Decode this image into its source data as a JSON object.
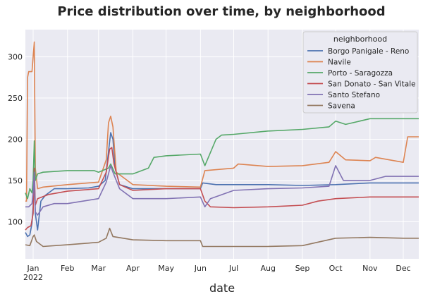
{
  "chart_data": {
    "type": "line",
    "title": "Price distribution over time, by neighborhood",
    "xlabel": "date",
    "ylabel": "",
    "x_range": [
      "2021-12-25",
      "2022-12-15"
    ],
    "ylim": [
      55,
      333
    ],
    "y_ticks": [
      100,
      150,
      200,
      250,
      300
    ],
    "x_ticks": [
      {
        "date": "2022-01-01",
        "label": "Jan",
        "sublabel": "2022"
      },
      {
        "date": "2022-02-01",
        "label": "Feb"
      },
      {
        "date": "2022-03-01",
        "label": "Mar"
      },
      {
        "date": "2022-04-01",
        "label": "Apr"
      },
      {
        "date": "2022-05-01",
        "label": "May"
      },
      {
        "date": "2022-06-01",
        "label": "Jun"
      },
      {
        "date": "2022-07-01",
        "label": "Jul"
      },
      {
        "date": "2022-08-01",
        "label": "Aug"
      },
      {
        "date": "2022-09-01",
        "label": "Sep"
      },
      {
        "date": "2022-10-01",
        "label": "Oct"
      },
      {
        "date": "2022-11-01",
        "label": "Nov"
      },
      {
        "date": "2022-12-01",
        "label": "Dec"
      }
    ],
    "grid": true,
    "legend": {
      "title": "neighborhood",
      "placement": "top-right"
    },
    "series": [
      {
        "name": "Borgo Panigale - Reno",
        "color": "#4c72b0",
        "points": [
          [
            "2021-12-25",
            87
          ],
          [
            "2021-12-27",
            82
          ],
          [
            "2021-12-29",
            84
          ],
          [
            "2021-12-31",
            98
          ],
          [
            "2022-01-01",
            118
          ],
          [
            "2022-01-02",
            152
          ],
          [
            "2022-01-03",
            110
          ],
          [
            "2022-01-05",
            90
          ],
          [
            "2022-01-08",
            125
          ],
          [
            "2022-01-12",
            132
          ],
          [
            "2022-01-20",
            140
          ],
          [
            "2022-02-01",
            140
          ],
          [
            "2022-02-20",
            141
          ],
          [
            "2022-03-01",
            143
          ],
          [
            "2022-03-07",
            150
          ],
          [
            "2022-03-10",
            185
          ],
          [
            "2022-03-12",
            208
          ],
          [
            "2022-03-14",
            200
          ],
          [
            "2022-03-16",
            165
          ],
          [
            "2022-03-20",
            145
          ],
          [
            "2022-04-01",
            140
          ],
          [
            "2022-05-01",
            140
          ],
          [
            "2022-06-01",
            140
          ],
          [
            "2022-06-03",
            147
          ],
          [
            "2022-06-15",
            145
          ],
          [
            "2022-07-01",
            145
          ],
          [
            "2022-08-01",
            145
          ],
          [
            "2022-09-01",
            144
          ],
          [
            "2022-10-01",
            145
          ],
          [
            "2022-11-01",
            147
          ],
          [
            "2022-12-01",
            147
          ],
          [
            "2022-12-15",
            147
          ]
        ]
      },
      {
        "name": "Navile",
        "color": "#dd8452",
        "points": [
          [
            "2021-12-25",
            125
          ],
          [
            "2021-12-26",
            125
          ],
          [
            "2021-12-27",
            275
          ],
          [
            "2021-12-28",
            282
          ],
          [
            "2021-12-31",
            282
          ],
          [
            "2022-01-01",
            300
          ],
          [
            "2022-01-02",
            318
          ],
          [
            "2022-01-03",
            165
          ],
          [
            "2022-01-05",
            140
          ],
          [
            "2022-01-10",
            142
          ],
          [
            "2022-02-01",
            145
          ],
          [
            "2022-03-01",
            148
          ],
          [
            "2022-03-08",
            175
          ],
          [
            "2022-03-10",
            220
          ],
          [
            "2022-03-12",
            228
          ],
          [
            "2022-03-14",
            215
          ],
          [
            "2022-03-17",
            160
          ],
          [
            "2022-04-01",
            145
          ],
          [
            "2022-05-01",
            143
          ],
          [
            "2022-06-01",
            142
          ],
          [
            "2022-06-05",
            162
          ],
          [
            "2022-07-01",
            165
          ],
          [
            "2022-07-05",
            170
          ],
          [
            "2022-08-01",
            167
          ],
          [
            "2022-09-01",
            168
          ],
          [
            "2022-09-25",
            172
          ],
          [
            "2022-10-01",
            185
          ],
          [
            "2022-10-10",
            175
          ],
          [
            "2022-11-01",
            174
          ],
          [
            "2022-11-06",
            178
          ],
          [
            "2022-12-01",
            172
          ],
          [
            "2022-12-05",
            203
          ],
          [
            "2022-12-15",
            203
          ]
        ]
      },
      {
        "name": "Porto - Saragozza",
        "color": "#55a868",
        "points": [
          [
            "2021-12-25",
            135
          ],
          [
            "2021-12-27",
            128
          ],
          [
            "2021-12-29",
            140
          ],
          [
            "2021-12-31",
            135
          ],
          [
            "2022-01-01",
            150
          ],
          [
            "2022-01-02",
            198
          ],
          [
            "2022-01-03",
            150
          ],
          [
            "2022-01-05",
            158
          ],
          [
            "2022-01-10",
            160
          ],
          [
            "2022-02-01",
            162
          ],
          [
            "2022-02-25",
            162
          ],
          [
            "2022-03-01",
            160
          ],
          [
            "2022-03-10",
            165
          ],
          [
            "2022-03-12",
            170
          ],
          [
            "2022-03-16",
            158
          ],
          [
            "2022-04-01",
            158
          ],
          [
            "2022-04-15",
            165
          ],
          [
            "2022-04-20",
            178
          ],
          [
            "2022-05-01",
            180
          ],
          [
            "2022-06-01",
            182
          ],
          [
            "2022-06-05",
            168
          ],
          [
            "2022-06-15",
            200
          ],
          [
            "2022-06-20",
            205
          ],
          [
            "2022-07-01",
            206
          ],
          [
            "2022-08-01",
            210
          ],
          [
            "2022-09-01",
            212
          ],
          [
            "2022-09-25",
            215
          ],
          [
            "2022-10-01",
            222
          ],
          [
            "2022-10-10",
            218
          ],
          [
            "2022-11-01",
            225
          ],
          [
            "2022-12-01",
            225
          ],
          [
            "2022-12-15",
            225
          ]
        ]
      },
      {
        "name": "San Donato - San Vitale",
        "color": "#c44e52",
        "points": [
          [
            "2021-12-25",
            90
          ],
          [
            "2021-12-27",
            93
          ],
          [
            "2021-12-30",
            95
          ],
          [
            "2022-01-01",
            110
          ],
          [
            "2022-01-02",
            165
          ],
          [
            "2022-01-03",
            120
          ],
          [
            "2022-01-05",
            128
          ],
          [
            "2022-01-15",
            133
          ],
          [
            "2022-02-01",
            137
          ],
          [
            "2022-03-01",
            140
          ],
          [
            "2022-03-08",
            160
          ],
          [
            "2022-03-11",
            188
          ],
          [
            "2022-03-13",
            190
          ],
          [
            "2022-03-15",
            170
          ],
          [
            "2022-03-20",
            145
          ],
          [
            "2022-04-01",
            138
          ],
          [
            "2022-05-01",
            140
          ],
          [
            "2022-06-01",
            140
          ],
          [
            "2022-06-05",
            125
          ],
          [
            "2022-06-10",
            118
          ],
          [
            "2022-07-01",
            117
          ],
          [
            "2022-08-01",
            118
          ],
          [
            "2022-09-01",
            120
          ],
          [
            "2022-09-15",
            125
          ],
          [
            "2022-10-01",
            128
          ],
          [
            "2022-11-01",
            130
          ],
          [
            "2022-12-01",
            130
          ],
          [
            "2022-12-15",
            130
          ]
        ]
      },
      {
        "name": "Santo Stefano",
        "color": "#8172b3",
        "points": [
          [
            "2021-12-25",
            118
          ],
          [
            "2021-12-28",
            118
          ],
          [
            "2021-12-31",
            122
          ],
          [
            "2022-01-01",
            135
          ],
          [
            "2022-01-02",
            160
          ],
          [
            "2022-01-03",
            112
          ],
          [
            "2022-01-05",
            108
          ],
          [
            "2022-01-10",
            118
          ],
          [
            "2022-01-20",
            122
          ],
          [
            "2022-02-01",
            122
          ],
          [
            "2022-03-01",
            128
          ],
          [
            "2022-03-08",
            148
          ],
          [
            "2022-03-12",
            168
          ],
          [
            "2022-03-14",
            160
          ],
          [
            "2022-03-20",
            140
          ],
          [
            "2022-04-01",
            128
          ],
          [
            "2022-05-01",
            128
          ],
          [
            "2022-06-01",
            130
          ],
          [
            "2022-06-05",
            118
          ],
          [
            "2022-06-10",
            128
          ],
          [
            "2022-07-01",
            138
          ],
          [
            "2022-08-01",
            140
          ],
          [
            "2022-09-01",
            141
          ],
          [
            "2022-09-25",
            143
          ],
          [
            "2022-10-01",
            168
          ],
          [
            "2022-10-08",
            150
          ],
          [
            "2022-11-01",
            150
          ],
          [
            "2022-11-15",
            155
          ],
          [
            "2022-12-01",
            155
          ],
          [
            "2022-12-15",
            155
          ]
        ]
      },
      {
        "name": "Savena",
        "color": "#937860",
        "points": [
          [
            "2021-12-25",
            72
          ],
          [
            "2021-12-29",
            71
          ],
          [
            "2022-01-01",
            82
          ],
          [
            "2022-01-02",
            84
          ],
          [
            "2022-01-04",
            76
          ],
          [
            "2022-01-10",
            70
          ],
          [
            "2022-02-01",
            72
          ],
          [
            "2022-03-01",
            75
          ],
          [
            "2022-03-08",
            80
          ],
          [
            "2022-03-11",
            92
          ],
          [
            "2022-03-14",
            82
          ],
          [
            "2022-04-01",
            78
          ],
          [
            "2022-05-01",
            77
          ],
          [
            "2022-06-01",
            77
          ],
          [
            "2022-06-03",
            70
          ],
          [
            "2022-07-01",
            70
          ],
          [
            "2022-08-01",
            70
          ],
          [
            "2022-09-01",
            71
          ],
          [
            "2022-10-01",
            80
          ],
          [
            "2022-11-01",
            81
          ],
          [
            "2022-12-01",
            80
          ],
          [
            "2022-12-15",
            80
          ]
        ]
      }
    ]
  }
}
